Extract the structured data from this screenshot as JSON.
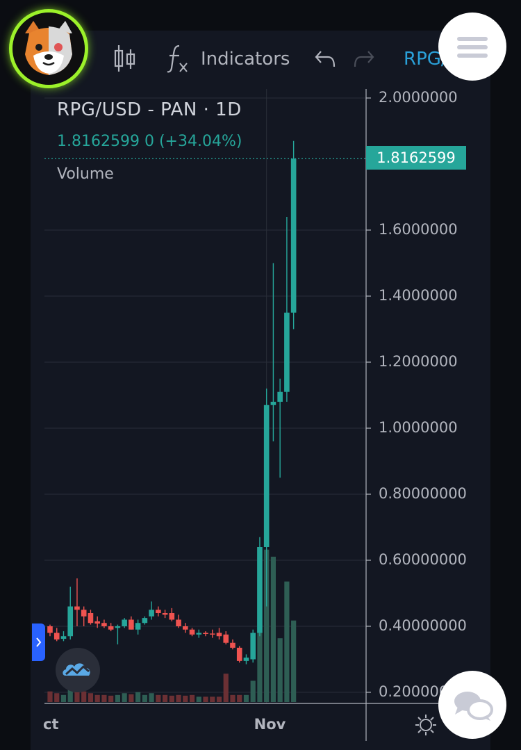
{
  "toolbar": {
    "indicators_label": "Indicators",
    "symbol_tab": "RPG/",
    "icons": [
      "candlestick-icon",
      "function-icon",
      "undo-icon",
      "redo-icon"
    ]
  },
  "legend": {
    "title": "RPG/USD - PAN · 1D",
    "price_line": "1.8162599  0 (+34.04%)",
    "volume_label": "Volume"
  },
  "last_price_tag": "1.8162599",
  "colors": {
    "background": "#131722",
    "up": "#26a69a",
    "down": "#ef5350",
    "up_volume": "#2e5e54",
    "down_volume": "#6b3034",
    "accent": "#9cf12a"
  },
  "chart_data": {
    "type": "candlestick",
    "title": "RPG/USD - PAN · 1D",
    "last_price": 1.8162599,
    "change_pct": 34.04,
    "ylim": [
      0.18,
      2.03
    ],
    "y_ticks": [
      "2.0000000",
      "1.6000000",
      "1.4000000",
      "1.2000000",
      "1.0000000",
      "0.80000000",
      "0.60000000",
      "0.40000000",
      "0.200000"
    ],
    "y_tick_values": [
      2.0,
      1.6,
      1.4,
      1.2,
      1.0,
      0.8,
      0.6,
      0.4,
      0.2
    ],
    "x_ticks": [
      {
        "label": "ct",
        "index": -1.8
      },
      {
        "label": "Nov",
        "index": 32
      }
    ],
    "grid": true,
    "candles": [
      {
        "o": 0.4,
        "h": 0.405,
        "c": 0.38,
        "l": 0.37,
        "v": 0.03
      },
      {
        "o": 0.38,
        "h": 0.395,
        "c": 0.36,
        "l": 0.355,
        "v": 0.025
      },
      {
        "o": 0.362,
        "h": 0.385,
        "c": 0.37,
        "l": 0.355,
        "v": 0.02
      },
      {
        "o": 0.37,
        "h": 0.52,
        "c": 0.46,
        "l": 0.36,
        "v": 0.04
      },
      {
        "o": 0.46,
        "h": 0.545,
        "c": 0.45,
        "l": 0.4,
        "v": 0.035
      },
      {
        "o": 0.45,
        "h": 0.46,
        "c": 0.43,
        "l": 0.4,
        "v": 0.03
      },
      {
        "o": 0.44,
        "h": 0.45,
        "c": 0.41,
        "l": 0.405,
        "v": 0.025
      },
      {
        "o": 0.415,
        "h": 0.43,
        "c": 0.408,
        "l": 0.395,
        "v": 0.02
      },
      {
        "o": 0.41,
        "h": 0.42,
        "c": 0.4,
        "l": 0.395,
        "v": 0.02
      },
      {
        "o": 0.4,
        "h": 0.41,
        "c": 0.39,
        "l": 0.385,
        "v": 0.018
      },
      {
        "o": 0.395,
        "h": 0.405,
        "c": 0.4,
        "l": 0.345,
        "v": 0.02
      },
      {
        "o": 0.4,
        "h": 0.425,
        "c": 0.42,
        "l": 0.395,
        "v": 0.025
      },
      {
        "o": 0.42,
        "h": 0.43,
        "c": 0.39,
        "l": 0.39,
        "v": 0.022
      },
      {
        "o": 0.39,
        "h": 0.42,
        "c": 0.41,
        "l": 0.375,
        "v": 0.028
      },
      {
        "o": 0.41,
        "h": 0.43,
        "c": 0.425,
        "l": 0.405,
        "v": 0.02
      },
      {
        "o": 0.43,
        "h": 0.475,
        "c": 0.45,
        "l": 0.42,
        "v": 0.025
      },
      {
        "o": 0.45,
        "h": 0.46,
        "c": 0.44,
        "l": 0.43,
        "v": 0.02
      },
      {
        "o": 0.44,
        "h": 0.45,
        "c": 0.435,
        "l": 0.425,
        "v": 0.02
      },
      {
        "o": 0.44,
        "h": 0.455,
        "c": 0.42,
        "l": 0.415,
        "v": 0.018
      },
      {
        "o": 0.42,
        "h": 0.435,
        "c": 0.4,
        "l": 0.395,
        "v": 0.02
      },
      {
        "o": 0.4,
        "h": 0.41,
        "c": 0.39,
        "l": 0.38,
        "v": 0.018
      },
      {
        "o": 0.39,
        "h": 0.395,
        "c": 0.375,
        "l": 0.37,
        "v": 0.02
      },
      {
        "o": 0.375,
        "h": 0.39,
        "c": 0.38,
        "l": 0.365,
        "v": 0.015
      },
      {
        "o": 0.38,
        "h": 0.385,
        "c": 0.378,
        "l": 0.37,
        "v": 0.015
      },
      {
        "o": 0.378,
        "h": 0.39,
        "c": 0.375,
        "l": 0.365,
        "v": 0.015
      },
      {
        "o": 0.38,
        "h": 0.395,
        "c": 0.37,
        "l": 0.36,
        "v": 0.015
      },
      {
        "o": 0.375,
        "h": 0.385,
        "c": 0.35,
        "l": 0.345,
        "v": 0.08
      },
      {
        "o": 0.35,
        "h": 0.36,
        "c": 0.335,
        "l": 0.33,
        "v": 0.02
      },
      {
        "o": 0.335,
        "h": 0.34,
        "c": 0.295,
        "l": 0.29,
        "v": 0.02
      },
      {
        "o": 0.295,
        "h": 0.315,
        "c": 0.305,
        "l": 0.285,
        "v": 0.02
      },
      {
        "o": 0.3,
        "h": 0.39,
        "c": 0.38,
        "l": 0.29,
        "v": 0.06
      },
      {
        "o": 0.38,
        "h": 0.67,
        "c": 0.64,
        "l": 0.37,
        "v": 0.2
      },
      {
        "o": 0.64,
        "h": 1.12,
        "c": 1.07,
        "l": 0.46,
        "v": 0.43
      },
      {
        "o": 1.07,
        "h": 1.5,
        "c": 1.08,
        "l": 0.96,
        "v": 0.41
      },
      {
        "o": 1.08,
        "h": 1.15,
        "c": 1.11,
        "l": 0.85,
        "v": 0.18
      },
      {
        "o": 1.11,
        "h": 1.64,
        "c": 1.35,
        "l": 1.08,
        "v": 0.34
      },
      {
        "o": 1.35,
        "h": 1.87,
        "c": 1.816,
        "l": 1.3,
        "v": 0.23
      }
    ]
  }
}
